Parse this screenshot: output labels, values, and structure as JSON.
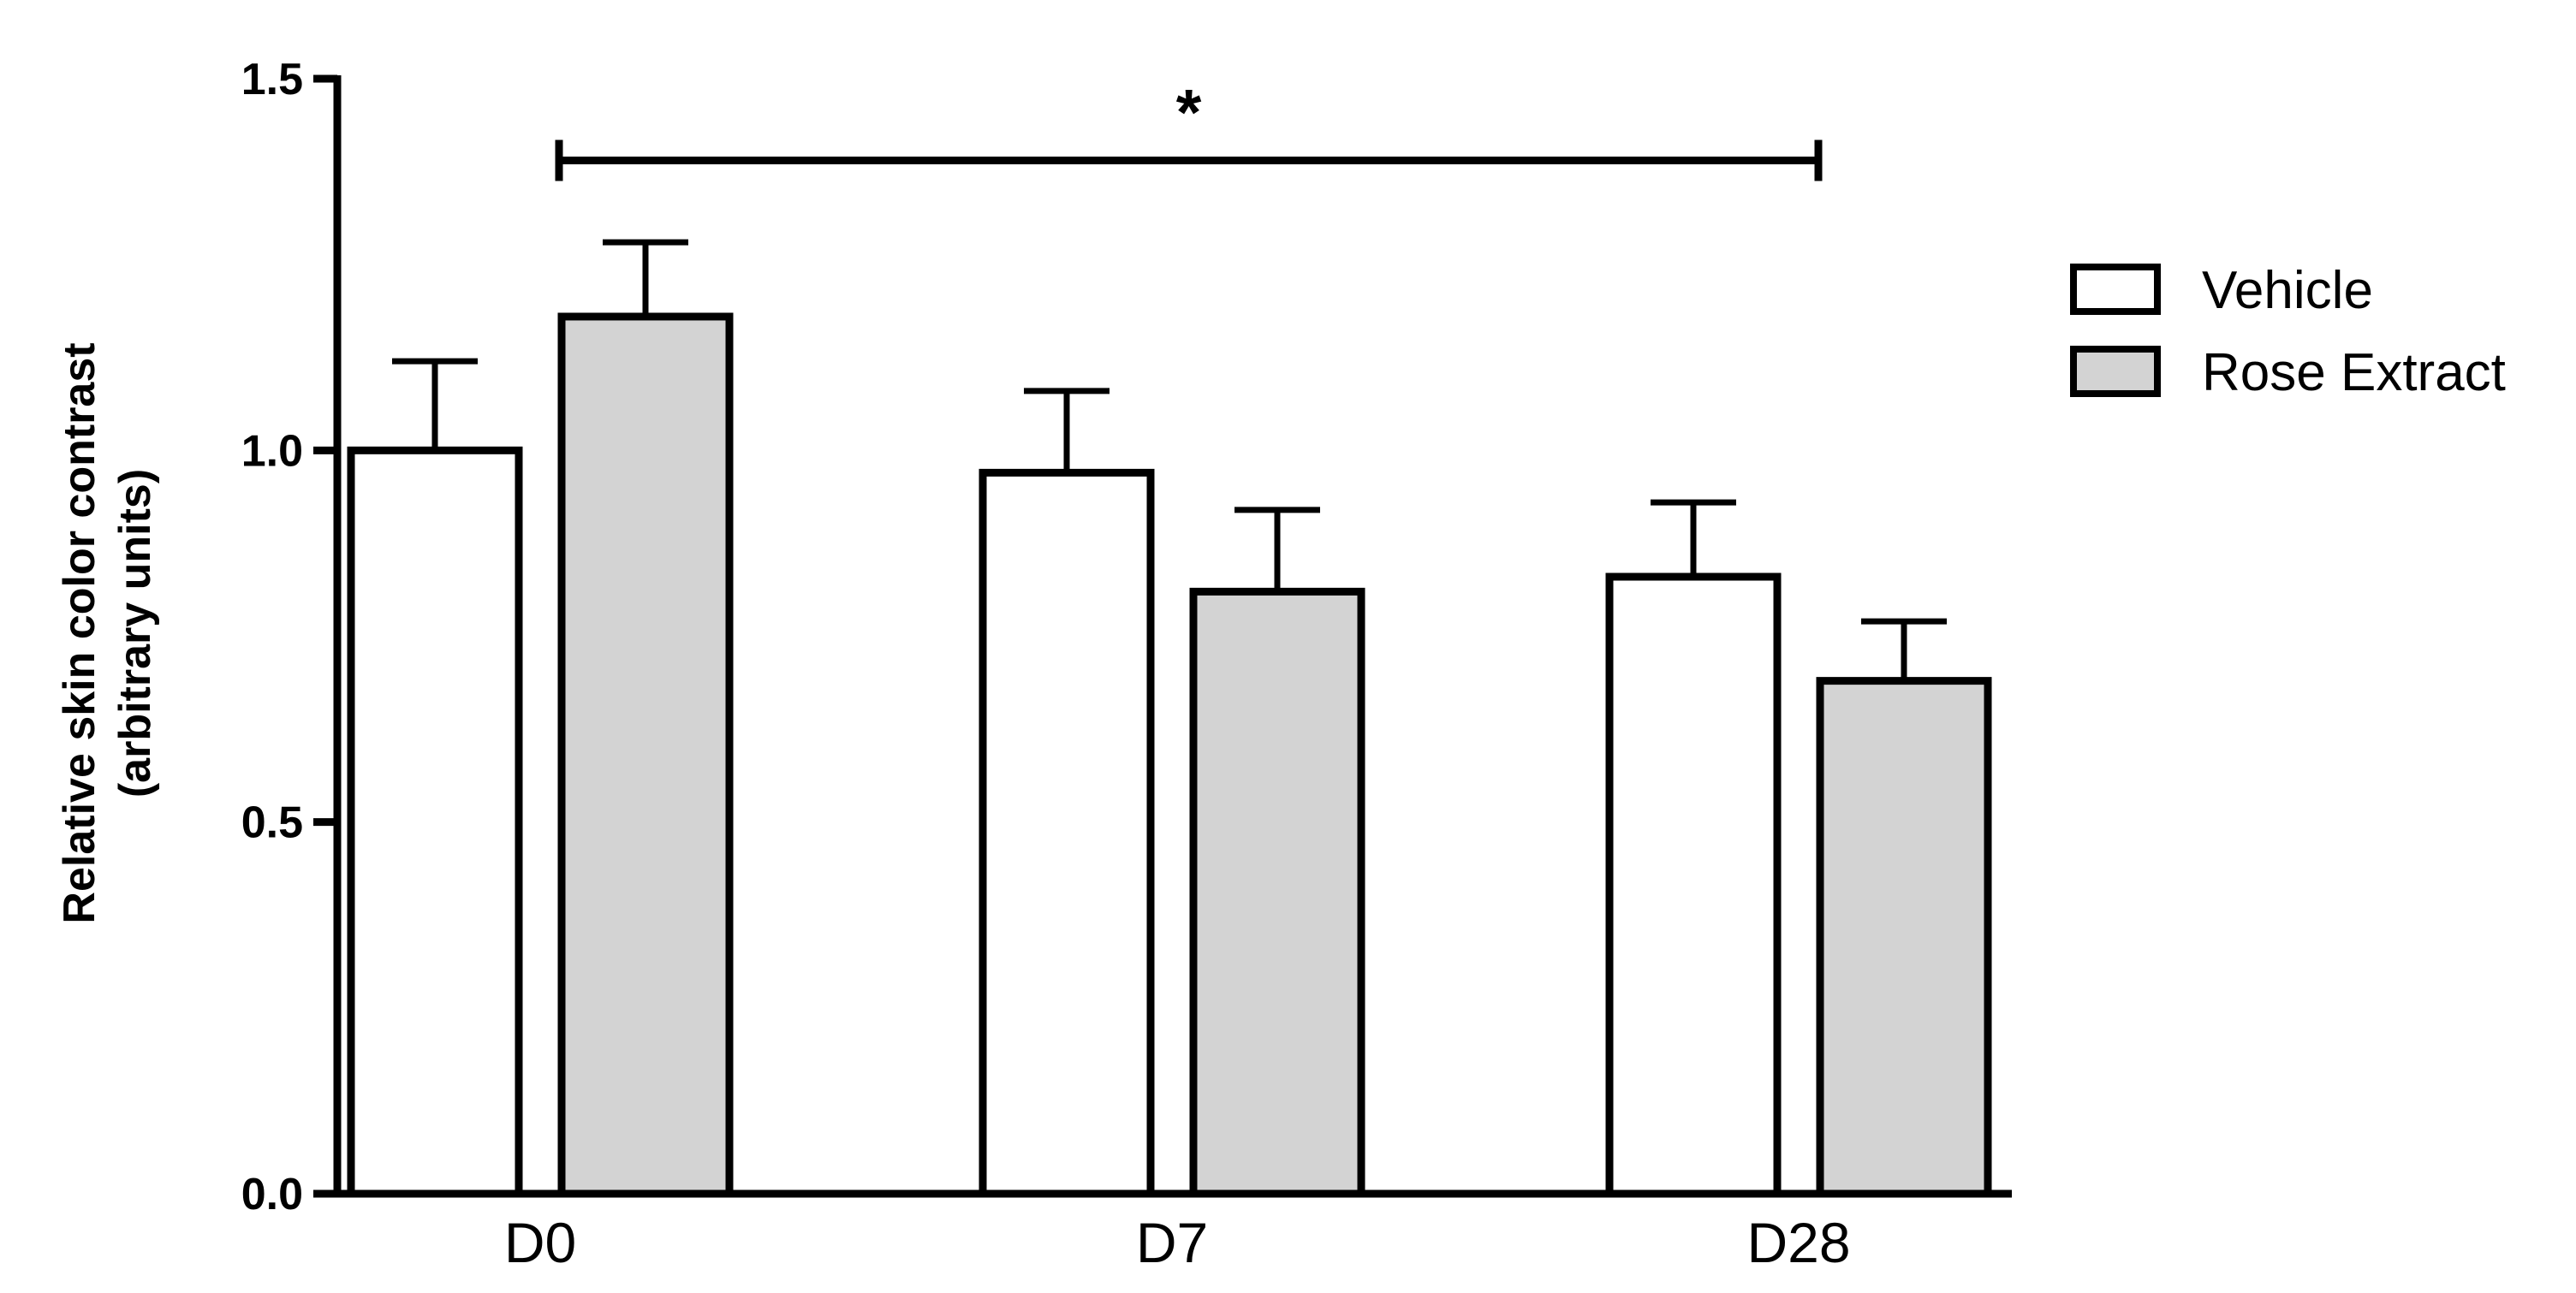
{
  "chart_data": {
    "type": "bar",
    "categories": [
      "D0",
      "D7",
      "D28"
    ],
    "series": [
      {
        "name": "Vehicle",
        "values": [
          1.0,
          0.97,
          0.83
        ],
        "errors": [
          0.12,
          0.11,
          0.1
        ],
        "color": "#ffffff"
      },
      {
        "name": "Rose Extract",
        "values": [
          1.18,
          0.81,
          0.69
        ],
        "errors": [
          0.1,
          0.11,
          0.08
        ],
        "color": "#d3d3d3"
      }
    ],
    "ylabel": "Relative skin color contrast",
    "ylabel_sub": "(arbitrary units)",
    "ylim": [
      0,
      1.5
    ],
    "yticks": [
      {
        "value": 0.0,
        "label": "0.0"
      },
      {
        "value": 0.5,
        "label": "0.5"
      },
      {
        "value": 1.0,
        "label": "1.0"
      },
      {
        "value": 1.5,
        "label": "1.5"
      }
    ],
    "significance": {
      "label": "*",
      "from": {
        "category": "D0",
        "series": "Rose Extract"
      },
      "to": {
        "category": "D28",
        "series": "Rose Extract"
      },
      "y": 1.39
    },
    "legend_position": "right",
    "grid": false
  }
}
